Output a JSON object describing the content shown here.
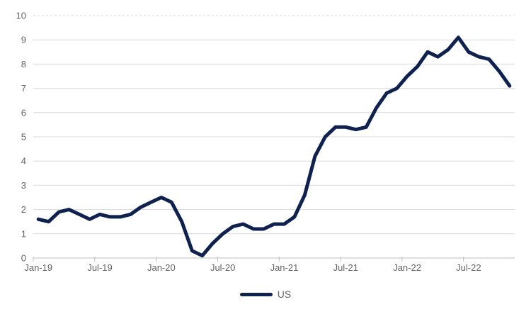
{
  "chart_data": {
    "type": "line",
    "title": "",
    "xlabel": "",
    "ylabel": "",
    "ylim": [
      0,
      10
    ],
    "y_tick_step": 1,
    "grid": "horizontal",
    "top_gridline_dashed": true,
    "legend_position": "bottom",
    "x": [
      "Jan-19",
      "Feb-19",
      "Mar-19",
      "Apr-19",
      "May-19",
      "Jun-19",
      "Jul-19",
      "Aug-19",
      "Sep-19",
      "Oct-19",
      "Nov-19",
      "Dec-19",
      "Jan-20",
      "Feb-20",
      "Mar-20",
      "Apr-20",
      "May-20",
      "Jun-20",
      "Jul-20",
      "Aug-20",
      "Sep-20",
      "Oct-20",
      "Nov-20",
      "Dec-20",
      "Jan-21",
      "Feb-21",
      "Mar-21",
      "Apr-21",
      "May-21",
      "Jun-21",
      "Jul-21",
      "Aug-21",
      "Sep-21",
      "Oct-21",
      "Nov-21",
      "Dec-21",
      "Jan-22",
      "Feb-22",
      "Mar-22",
      "Apr-22",
      "May-22",
      "Jun-22",
      "Jul-22",
      "Aug-22",
      "Sep-22",
      "Oct-22",
      "Nov-22"
    ],
    "x_tick_labels": [
      "Jan-19",
      "Jul-19",
      "Jan-20",
      "Jul-20",
      "Jan-21",
      "Jul-21",
      "Jan-22",
      "Jul-22"
    ],
    "x_tick_every": 6,
    "series": [
      {
        "name": "US",
        "color": "#0d2152",
        "values": [
          1.6,
          1.5,
          1.9,
          2.0,
          1.8,
          1.6,
          1.8,
          1.7,
          1.7,
          1.8,
          2.1,
          2.3,
          2.5,
          2.3,
          1.5,
          0.3,
          0.1,
          0.6,
          1.0,
          1.3,
          1.4,
          1.2,
          1.2,
          1.4,
          1.4,
          1.7,
          2.6,
          4.2,
          5.0,
          5.4,
          5.4,
          5.3,
          5.4,
          6.2,
          6.8,
          7.0,
          7.5,
          7.9,
          8.5,
          8.3,
          8.6,
          9.1,
          8.5,
          8.3,
          8.2,
          7.7,
          7.1
        ]
      }
    ],
    "colors": {
      "grid": "#d9d9d9",
      "axis": "#bfbfbf",
      "tick_text": "#636363",
      "background": "#ffffff"
    }
  }
}
